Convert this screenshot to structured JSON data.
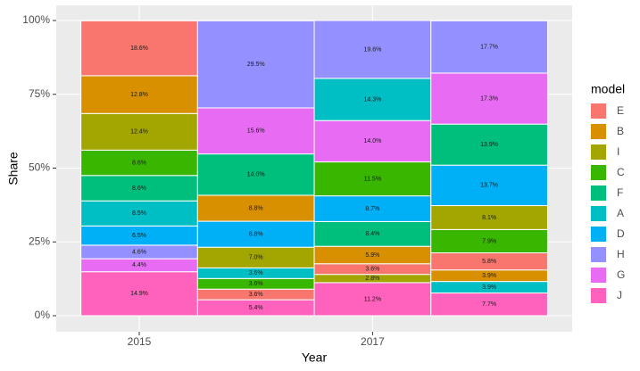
{
  "chart_data": {
    "type": "stacked-bar",
    "x_label": "Year",
    "y_label": "Share",
    "legend_title": "model",
    "categories": [
      "2015",
      null,
      "2017",
      null
    ],
    "series": [
      {
        "name": "E",
        "color": "#F8766D"
      },
      {
        "name": "B",
        "color": "#D89000"
      },
      {
        "name": "I",
        "color": "#A3A500"
      },
      {
        "name": "C",
        "color": "#39B600"
      },
      {
        "name": "F",
        "color": "#00BF7D"
      },
      {
        "name": "A",
        "color": "#00BFC4"
      },
      {
        "name": "D",
        "color": "#00B0F6"
      },
      {
        "name": "H",
        "color": "#9590FF"
      },
      {
        "name": "G",
        "color": "#E76BF3"
      },
      {
        "name": "J",
        "color": "#FF62BC"
      }
    ],
    "bars": [
      {
        "models": [
          "J",
          "G",
          "H",
          "D",
          "A",
          "F",
          "C",
          "I",
          "B",
          "E"
        ],
        "values": [
          14.9,
          4.4,
          4.6,
          6.5,
          8.5,
          8.6,
          8.6,
          12.4,
          12.8,
          18.6
        ],
        "value_labels": [
          "14.9%",
          "4.4%",
          "4.6%",
          "6.5%",
          "8.5%",
          "8.6%",
          "8.6%",
          "12.4%",
          "12.8%",
          "18.6%"
        ]
      },
      {
        "models": [
          "J",
          "E",
          "C",
          "A",
          "I",
          "D",
          "B",
          "F",
          "G",
          "H"
        ],
        "values": [
          5.4,
          3.6,
          3.6,
          3.6,
          7.0,
          8.8,
          8.8,
          14.0,
          15.6,
          29.5
        ],
        "value_labels": [
          "5.4%",
          "3.6%",
          "3.6%",
          "3.6%",
          "7.0%",
          "8.8%",
          "8.8%",
          "14.0%",
          "15.6%",
          "29.5%"
        ]
      },
      {
        "models": [
          "J",
          "I",
          "E",
          "B",
          "F",
          "D",
          "C",
          "G",
          "A",
          "H"
        ],
        "values": [
          11.2,
          2.8,
          3.6,
          5.9,
          8.4,
          8.7,
          11.5,
          14.0,
          14.3,
          19.6
        ],
        "value_labels": [
          "11.2%",
          "2.8%",
          "3.6%",
          "5.9%",
          "8.4%",
          "8.7%",
          "11.5%",
          "14.0%",
          "14.3%",
          "19.6%"
        ]
      },
      {
        "models": [
          "J",
          "A",
          "B",
          "E",
          "C",
          "I",
          "D",
          "F",
          "G",
          "H"
        ],
        "values": [
          7.7,
          3.9,
          3.9,
          5.8,
          7.9,
          8.1,
          13.7,
          13.9,
          17.3,
          17.7
        ],
        "value_labels": [
          "7.7%",
          "3.9%",
          "3.9%",
          "5.8%",
          "7.9%",
          "8.1%",
          "13.7%",
          "13.9%",
          "17.3%",
          "17.7%"
        ]
      }
    ],
    "ylim": [
      0,
      100
    ],
    "yticks": [
      {
        "value": 0,
        "label": "0%"
      },
      {
        "value": 25,
        "label": "25%"
      },
      {
        "value": 50,
        "label": "50%"
      },
      {
        "value": 75,
        "label": "75%"
      },
      {
        "value": 100,
        "label": "100%"
      }
    ],
    "grid": true
  }
}
